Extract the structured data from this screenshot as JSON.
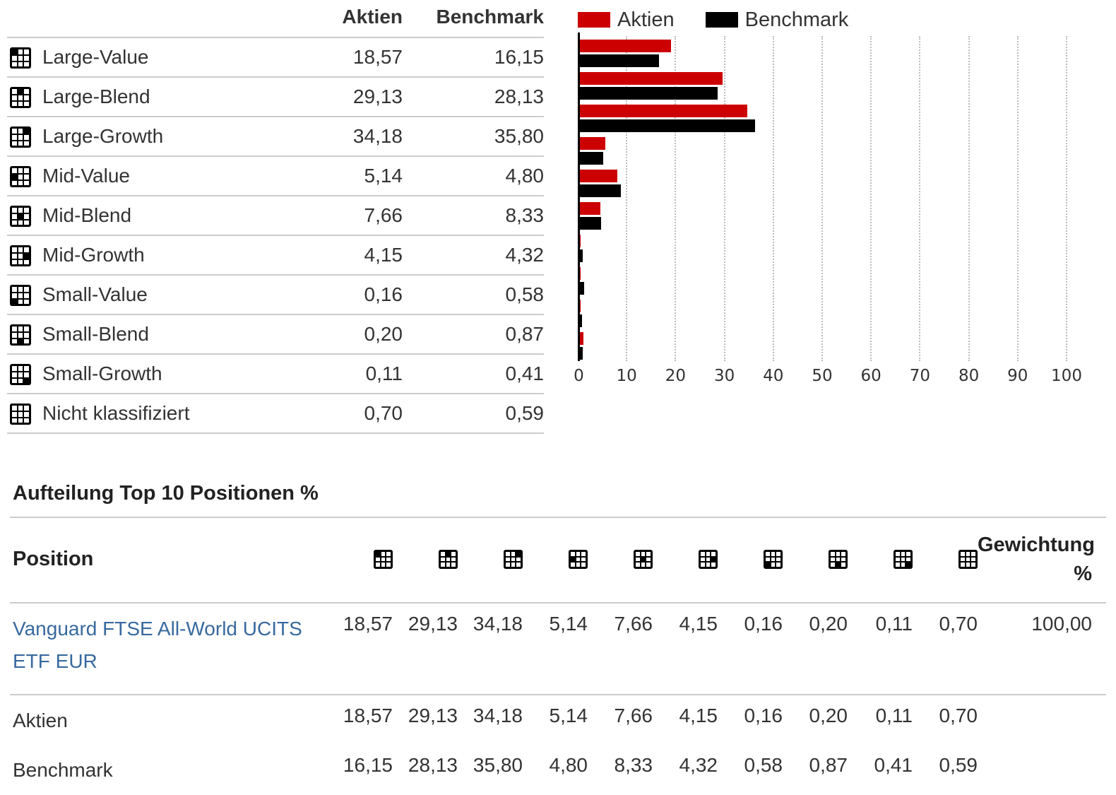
{
  "colors": {
    "aktien_red": "#cc0000",
    "benchmark_black": "#000000",
    "link_blue": "#37699f",
    "border_gray": "#cccccc",
    "text_dark": "#333333"
  },
  "style_table": {
    "headers": {
      "aktien": "Aktien",
      "benchmark": "Benchmark"
    },
    "rows": [
      {
        "label": "Large-Value",
        "box_cell": 0,
        "aktien": "18,57",
        "benchmark": "16,15"
      },
      {
        "label": "Large-Blend",
        "box_cell": 1,
        "aktien": "29,13",
        "benchmark": "28,13"
      },
      {
        "label": "Large-Growth",
        "box_cell": 2,
        "aktien": "34,18",
        "benchmark": "35,80"
      },
      {
        "label": "Mid-Value",
        "box_cell": 3,
        "aktien": "5,14",
        "benchmark": "4,80"
      },
      {
        "label": "Mid-Blend",
        "box_cell": 4,
        "aktien": "7,66",
        "benchmark": "8,33"
      },
      {
        "label": "Mid-Growth",
        "box_cell": 5,
        "aktien": "4,15",
        "benchmark": "4,32"
      },
      {
        "label": "Small-Value",
        "box_cell": 6,
        "aktien": "0,16",
        "benchmark": "0,58"
      },
      {
        "label": "Small-Blend",
        "box_cell": 7,
        "aktien": "0,20",
        "benchmark": "0,87"
      },
      {
        "label": "Small-Growth",
        "box_cell": 8,
        "aktien": "0,11",
        "benchmark": "0,41"
      },
      {
        "label": "Nicht klassifiziert",
        "box_cell": null,
        "aktien": "0,70",
        "benchmark": "0,59"
      }
    ]
  },
  "chart_data": {
    "type": "bar",
    "orientation": "horizontal",
    "title": "",
    "categories": [
      "Large-Value",
      "Large-Blend",
      "Large-Growth",
      "Mid-Value",
      "Mid-Blend",
      "Mid-Growth",
      "Small-Value",
      "Small-Blend",
      "Small-Growth",
      "Nicht klassifiziert"
    ],
    "series": [
      {
        "name": "Aktien",
        "color": "#cc0000",
        "values": [
          18.57,
          29.13,
          34.18,
          5.14,
          7.66,
          4.15,
          0.16,
          0.2,
          0.11,
          0.7
        ]
      },
      {
        "name": "Benchmark",
        "color": "#000000",
        "values": [
          16.15,
          28.13,
          35.8,
          4.8,
          8.33,
          4.32,
          0.58,
          0.87,
          0.41,
          0.59
        ]
      }
    ],
    "xlim": [
      0,
      100
    ],
    "x_ticks": [
      0,
      10,
      20,
      30,
      40,
      50,
      60,
      70,
      80,
      90,
      100
    ],
    "grid": "dotted-vertical",
    "legend_position": "top-left"
  },
  "top10": {
    "heading": "Aufteilung Top 10 Positionen %",
    "position_header": "Position",
    "weight_header_line1": "Gewichtung",
    "weight_header_line2": "%",
    "column_box_cells": [
      0,
      1,
      2,
      3,
      4,
      5,
      6,
      7,
      8,
      null
    ],
    "rows": [
      {
        "label": "Vanguard FTSE All-World UCITS ETF EUR",
        "is_link": true,
        "values": [
          "18,57",
          "29,13",
          "34,18",
          "5,14",
          "7,66",
          "4,15",
          "0,16",
          "0,20",
          "0,11",
          "0,70"
        ],
        "weight": "100,00"
      },
      {
        "label": "Aktien",
        "is_link": false,
        "values": [
          "18,57",
          "29,13",
          "34,18",
          "5,14",
          "7,66",
          "4,15",
          "0,16",
          "0,20",
          "0,11",
          "0,70"
        ],
        "weight": ""
      },
      {
        "label": "Benchmark",
        "is_link": false,
        "values": [
          "16,15",
          "28,13",
          "35,80",
          "4,80",
          "8,33",
          "4,32",
          "0,58",
          "0,87",
          "0,41",
          "0,59"
        ],
        "weight": ""
      }
    ]
  }
}
